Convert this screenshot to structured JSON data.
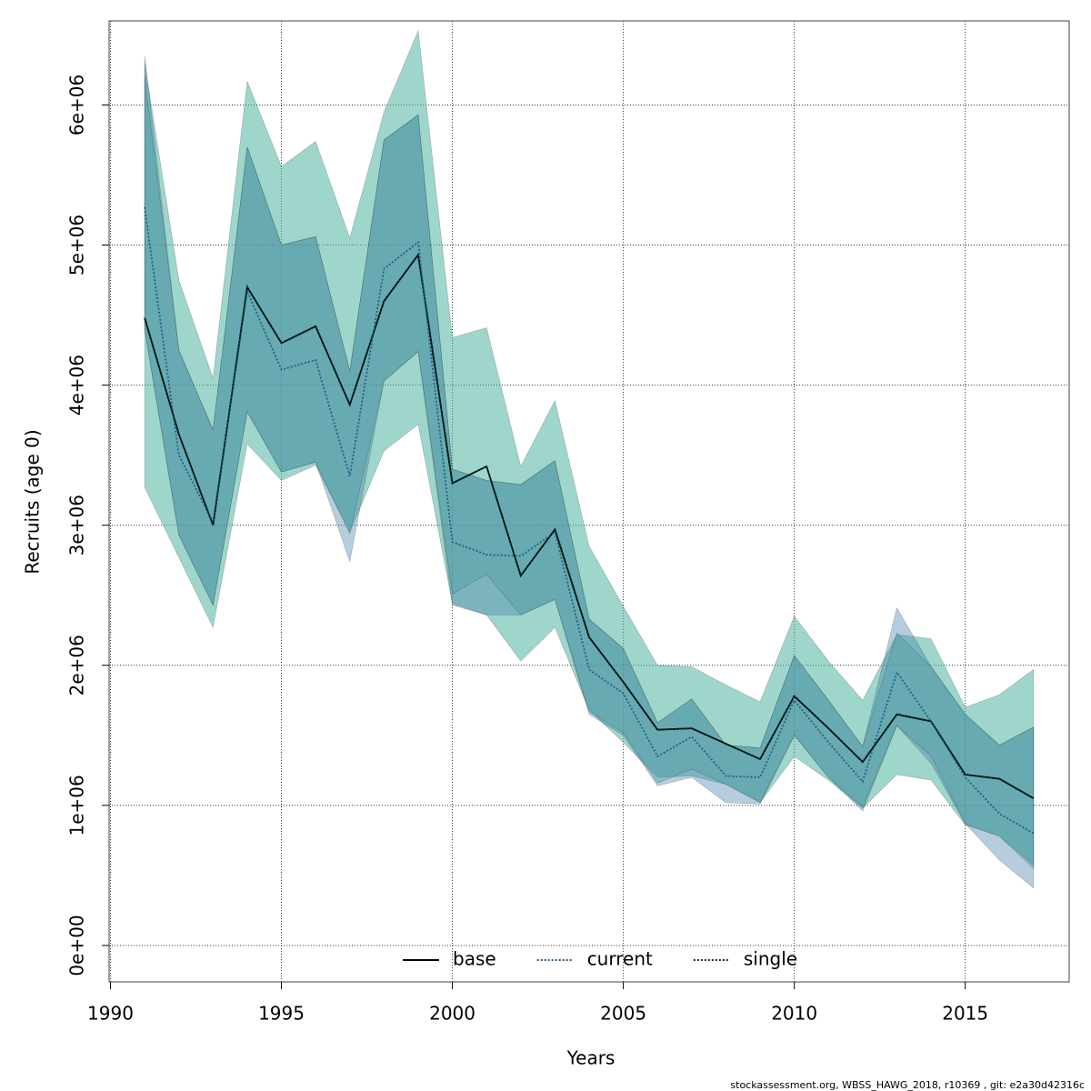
{
  "chart_data": {
    "type": "line",
    "xlabel": "Years",
    "ylabel": "Recruits (age 0)",
    "footnote": "stockassessment.org, WBSS_HAWG_2018, r10369 , git: e2a30d42316c",
    "x": [
      1991,
      1992,
      1993,
      1994,
      1995,
      1996,
      1997,
      1998,
      1999,
      2000,
      2001,
      2002,
      2003,
      2004,
      2005,
      2006,
      2007,
      2008,
      2009,
      2010,
      2011,
      2012,
      2013,
      2014,
      2015,
      2016,
      2017
    ],
    "xlim": [
      1989.96,
      2018.04
    ],
    "xticks": [
      1990,
      1995,
      2000,
      2005,
      2010,
      2015
    ],
    "ylim": [
      -260000,
      6600000
    ],
    "yticks": [
      {
        "value": 0,
        "label": "0e+00"
      },
      {
        "value": 1000000,
        "label": "1e+06"
      },
      {
        "value": 2000000,
        "label": "2e+06"
      },
      {
        "value": 3000000,
        "label": "3e+06"
      },
      {
        "value": 4000000,
        "label": "4e+06"
      },
      {
        "value": 5000000,
        "label": "5e+06"
      },
      {
        "value": 6000000,
        "label": "6e+06"
      }
    ],
    "grid": true,
    "legend": "bottom",
    "series": [
      {
        "name": "single",
        "color": "#00352a",
        "linestyle": "dotted",
        "band_color": "rgba(80,180,160,0.55)",
        "values": [
          4480000.0,
          3650000.0,
          3000000.0,
          4700000.0,
          4300000.0,
          4420000.0,
          3860000.0,
          4600000.0,
          4930000.0,
          3300000.0,
          3420000.0,
          2640000.0,
          2970000.0,
          2200000.0,
          1880000.0,
          1540000.0,
          1550000.0,
          1440000.0,
          1330000.0,
          1780000.0,
          1550000.0,
          1310000.0,
          1650000.0,
          1600000.0,
          1220000.0,
          1190000.0,
          1050000.0
        ],
        "lower": [
          3270000.0,
          2770000.0,
          2270000.0,
          3580000.0,
          3320000.0,
          3430000.0,
          2950000.0,
          3530000.0,
          3720000.0,
          2440000.0,
          2360000.0,
          2030000.0,
          2270000.0,
          1680000.0,
          1450000.0,
          1200000.0,
          1210000.0,
          1150000.0,
          1020000.0,
          1350000.0,
          1180000.0,
          980000.0,
          1220000.0,
          1180000.0,
          860000.0,
          780000.0,
          570000.0
        ],
        "upper": [
          6300000.0,
          4750000.0,
          4050000.0,
          6170000.0,
          5560000.0,
          5740000.0,
          5050000.0,
          5950000.0,
          6530000.0,
          4340000.0,
          4410000.0,
          3420000.0,
          3890000.0,
          2850000.0,
          2420000.0,
          2000000.0,
          1990000.0,
          1860000.0,
          1740000.0,
          2350000.0,
          2030000.0,
          1750000.0,
          2220000.0,
          2190000.0,
          1700000.0,
          1790000.0,
          1970000.0
        ]
      },
      {
        "name": "current",
        "color": "#1f5f8b",
        "linestyle": "dotted",
        "band_color": "rgba(70,130,170,0.4)",
        "values": [
          5270000.0,
          3500000.0,
          3020000.0,
          4670000.0,
          4110000.0,
          4180000.0,
          3350000.0,
          4830000.0,
          5020000.0,
          2880000.0,
          2790000.0,
          2780000.0,
          2950000.0,
          1970000.0,
          1800000.0,
          1350000.0,
          1490000.0,
          1210000.0,
          1200000.0,
          1750000.0,
          1450000.0,
          1170000.0,
          1950000.0,
          1600000.0,
          1200000.0,
          940000.0,
          800000.0
        ],
        "lower": [
          4400000.0,
          2930000.0,
          2430000.0,
          3810000.0,
          3380000.0,
          3450000.0,
          2740000.0,
          4030000.0,
          4240000.0,
          2430000.0,
          2360000.0,
          2360000.0,
          2470000.0,
          1650000.0,
          1500000.0,
          1140000.0,
          1200000.0,
          1020000.0,
          1010000.0,
          1500000.0,
          1200000.0,
          960000.0,
          1570000.0,
          1300000.0,
          870000.0,
          610000.0,
          410000.0
        ],
        "upper": [
          6350000.0,
          4250000.0,
          3680000.0,
          5700000.0,
          5000000.0,
          5060000.0,
          4100000.0,
          5750000.0,
          5930000.0,
          3400000.0,
          3320000.0,
          3290000.0,
          3460000.0,
          2330000.0,
          2120000.0,
          1590000.0,
          1760000.0,
          1430000.0,
          1410000.0,
          2070000.0,
          1750000.0,
          1420000.0,
          2410000.0,
          1990000.0,
          1650000.0,
          1430000.0,
          1560000.0
        ]
      },
      {
        "name": "base",
        "color": "#000000",
        "linestyle": "solid",
        "band_color": "rgba(60,150,150,0.3)",
        "values": [
          4480000.0,
          3650000.0,
          3000000.0,
          4700000.0,
          4300000.0,
          4420000.0,
          3860000.0,
          4600000.0,
          4930000.0,
          3300000.0,
          3420000.0,
          2640000.0,
          2970000.0,
          2200000.0,
          1880000.0,
          1540000.0,
          1550000.0,
          1440000.0,
          1330000.0,
          1780000.0,
          1550000.0,
          1310000.0,
          1650000.0,
          1600000.0,
          1220000.0,
          1190000.0,
          1050000.0
        ],
        "lower": [
          4400000.0,
          2930000.0,
          2430000.0,
          3810000.0,
          3380000.0,
          3450000.0,
          2940000.0,
          4030000.0,
          4240000.0,
          2510000.0,
          2650000.0,
          2360000.0,
          2470000.0,
          1670000.0,
          1520000.0,
          1160000.0,
          1260000.0,
          1150000.0,
          1020000.0,
          1500000.0,
          1200000.0,
          990000.0,
          1570000.0,
          1350000.0,
          870000.0,
          780000.0,
          550000.0
        ],
        "upper": [
          6200000.0,
          4250000.0,
          3680000.0,
          5700000.0,
          5000000.0,
          5060000.0,
          4100000.0,
          5750000.0,
          5930000.0,
          3400000.0,
          3320000.0,
          3290000.0,
          3460000.0,
          2330000.0,
          2120000.0,
          1590000.0,
          1760000.0,
          1430000.0,
          1410000.0,
          2070000.0,
          1750000.0,
          1420000.0,
          2230000.0,
          1990000.0,
          1650000.0,
          1430000.0,
          1560000.0
        ]
      }
    ]
  }
}
